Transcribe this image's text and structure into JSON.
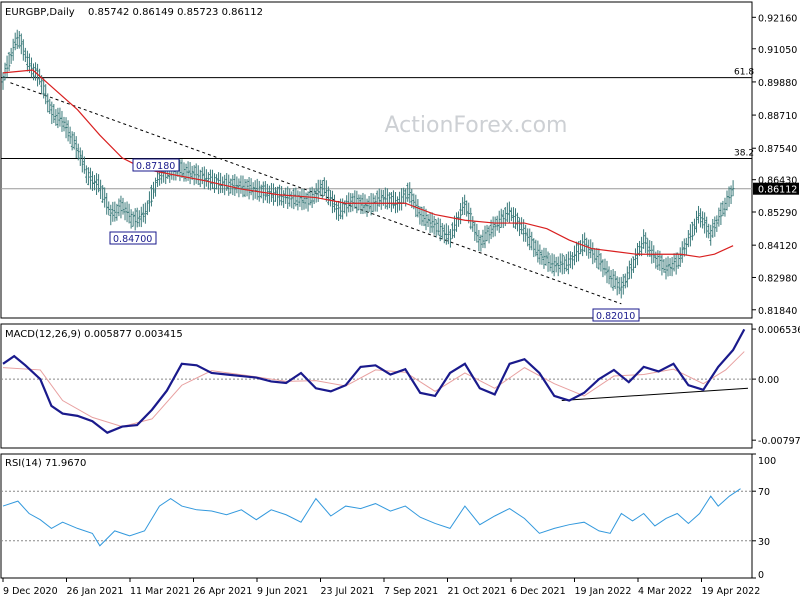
{
  "header": {
    "symbol_line": "EURGBP,Daily",
    "ohlc": "0.85742 0.86149 0.85723 0.86112"
  },
  "watermark": "ActionForex.com",
  "colors": {
    "price": "#3a7a7a",
    "ema": "#d92020",
    "trendline": "#000000",
    "macd": "#1a1a8c",
    "signal": "#e8a0a0",
    "rsi": "#3399dd",
    "grid": "#888888",
    "level": "#000000"
  },
  "chart_data": [
    {
      "type": "line",
      "panel": "price",
      "title": "EURGBP,Daily",
      "y_ticks": [
        "0.92160",
        "0.91050",
        "0.89880",
        "0.88710",
        "0.87540",
        "0.86430",
        "0.85290",
        "0.84120",
        "0.82980",
        "0.81840"
      ],
      "ylim": [
        0.8155,
        0.927
      ],
      "x_ticks": [
        "9 Dec 2020",
        "26 Jan 2021",
        "11 Mar 2021",
        "26 Apr 2021",
        "9 Jun 2021",
        "23 Jul 2021",
        "7 Sep 2021",
        "21 Oct 2021",
        "6 Dec 2021",
        "19 Jan 2022",
        "4 Mar 2022",
        "19 Apr 2022"
      ],
      "current_price": "0.86112",
      "levels": [
        {
          "label": "61.8",
          "value": 0.9003
        },
        {
          "label": "38.2",
          "value": 0.8718
        },
        {
          "label": "",
          "value": 0.8611
        }
      ],
      "annotations": [
        {
          "text": "0.87180",
          "t": 0.21,
          "value": 0.8718
        },
        {
          "text": "0.84700",
          "t": 0.175,
          "value": 0.847
        },
        {
          "text": "0.82010",
          "t": 0.83,
          "value": 0.8201
        }
      ],
      "trendline": {
        "start": [
          0.01,
          0.8985
        ],
        "end": [
          0.83,
          0.8205
        ]
      },
      "series": [
        {
          "name": "Price",
          "points": [
            [
              0,
              0.9
            ],
            [
              0.02,
              0.915
            ],
            [
              0.035,
              0.905
            ],
            [
              0.05,
              0.9
            ],
            [
              0.065,
              0.888
            ],
            [
              0.08,
              0.885
            ],
            [
              0.1,
              0.875
            ],
            [
              0.115,
              0.865
            ],
            [
              0.13,
              0.862
            ],
            [
              0.145,
              0.852
            ],
            [
              0.16,
              0.855
            ],
            [
              0.175,
              0.85
            ],
            [
              0.19,
              0.852
            ],
            [
              0.21,
              0.866
            ],
            [
              0.235,
              0.868
            ],
            [
              0.26,
              0.866
            ],
            [
              0.29,
              0.863
            ],
            [
              0.32,
              0.862
            ],
            [
              0.35,
              0.86
            ],
            [
              0.38,
              0.858
            ],
            [
              0.41,
              0.857
            ],
            [
              0.43,
              0.862
            ],
            [
              0.45,
              0.853
            ],
            [
              0.47,
              0.857
            ],
            [
              0.49,
              0.855
            ],
            [
              0.51,
              0.858
            ],
            [
              0.53,
              0.856
            ],
            [
              0.545,
              0.86
            ],
            [
              0.56,
              0.852
            ],
            [
              0.58,
              0.848
            ],
            [
              0.6,
              0.844
            ],
            [
              0.62,
              0.856
            ],
            [
              0.64,
              0.842
            ],
            [
              0.66,
              0.848
            ],
            [
              0.68,
              0.853
            ],
            [
              0.7,
              0.846
            ],
            [
              0.72,
              0.838
            ],
            [
              0.74,
              0.834
            ],
            [
              0.76,
              0.835
            ],
            [
              0.78,
              0.842
            ],
            [
              0.8,
              0.836
            ],
            [
              0.815,
              0.83
            ],
            [
              0.83,
              0.826
            ],
            [
              0.845,
              0.834
            ],
            [
              0.86,
              0.843
            ],
            [
              0.875,
              0.837
            ],
            [
              0.89,
              0.833
            ],
            [
              0.905,
              0.835
            ],
            [
              0.92,
              0.843
            ],
            [
              0.935,
              0.852
            ],
            [
              0.95,
              0.845
            ],
            [
              0.965,
              0.853
            ],
            [
              0.98,
              0.861
            ]
          ]
        },
        {
          "name": "EMA",
          "points": [
            [
              0,
              0.902
            ],
            [
              0.04,
              0.903
            ],
            [
              0.07,
              0.896
            ],
            [
              0.1,
              0.889
            ],
            [
              0.13,
              0.88
            ],
            [
              0.16,
              0.872
            ],
            [
              0.19,
              0.868
            ],
            [
              0.23,
              0.866
            ],
            [
              0.27,
              0.864
            ],
            [
              0.32,
              0.861
            ],
            [
              0.37,
              0.859
            ],
            [
              0.42,
              0.858
            ],
            [
              0.46,
              0.856
            ],
            [
              0.5,
              0.856
            ],
            [
              0.54,
              0.856
            ],
            [
              0.58,
              0.852
            ],
            [
              0.62,
              0.85
            ],
            [
              0.66,
              0.849
            ],
            [
              0.7,
              0.849
            ],
            [
              0.73,
              0.847
            ],
            [
              0.76,
              0.843
            ],
            [
              0.79,
              0.84
            ],
            [
              0.82,
              0.839
            ],
            [
              0.85,
              0.838
            ],
            [
              0.88,
              0.838
            ],
            [
              0.91,
              0.838
            ],
            [
              0.935,
              0.837
            ],
            [
              0.955,
              0.838
            ],
            [
              0.98,
              0.841
            ]
          ]
        }
      ]
    },
    {
      "type": "line",
      "panel": "macd",
      "title": "MACD(12,26,9) 0.005877 0.003415",
      "y_ticks": [
        "0.006536",
        "0.00",
        "-0.007977"
      ],
      "ylim": [
        -0.009,
        0.0072
      ],
      "trendline": {
        "start": [
          0.75,
          -0.0028
        ],
        "end": [
          1.0,
          -0.0012
        ]
      },
      "series": [
        {
          "name": "MACD",
          "points": [
            [
              0,
              0.002
            ],
            [
              0.015,
              0.003
            ],
            [
              0.03,
              0.0018
            ],
            [
              0.05,
              0.0
            ],
            [
              0.065,
              -0.0035
            ],
            [
              0.08,
              -0.0045
            ],
            [
              0.1,
              -0.0048
            ],
            [
              0.12,
              -0.0055
            ],
            [
              0.14,
              -0.007
            ],
            [
              0.16,
              -0.0062
            ],
            [
              0.18,
              -0.006
            ],
            [
              0.2,
              -0.004
            ],
            [
              0.22,
              -0.0015
            ],
            [
              0.24,
              0.002
            ],
            [
              0.26,
              0.0018
            ],
            [
              0.28,
              0.0008
            ],
            [
              0.3,
              0.0006
            ],
            [
              0.32,
              0.0004
            ],
            [
              0.34,
              0.0002
            ],
            [
              0.36,
              -0.0003
            ],
            [
              0.38,
              -0.0005
            ],
            [
              0.4,
              0.0008
            ],
            [
              0.42,
              -0.0012
            ],
            [
              0.44,
              -0.0016
            ],
            [
              0.46,
              -0.0008
            ],
            [
              0.48,
              0.0016
            ],
            [
              0.5,
              0.0018
            ],
            [
              0.52,
              0.0006
            ],
            [
              0.54,
              0.0013
            ],
            [
              0.56,
              -0.0018
            ],
            [
              0.58,
              -0.0022
            ],
            [
              0.6,
              0.0008
            ],
            [
              0.62,
              0.002
            ],
            [
              0.64,
              -0.0012
            ],
            [
              0.66,
              -0.002
            ],
            [
              0.68,
              0.002
            ],
            [
              0.7,
              0.0026
            ],
            [
              0.72,
              0.0008
            ],
            [
              0.74,
              -0.0022
            ],
            [
              0.76,
              -0.0028
            ],
            [
              0.78,
              -0.0018
            ],
            [
              0.8,
              0.0
            ],
            [
              0.82,
              0.0012
            ],
            [
              0.84,
              -0.0004
            ],
            [
              0.86,
              0.0016
            ],
            [
              0.88,
              0.001
            ],
            [
              0.9,
              0.002
            ],
            [
              0.92,
              -0.0008
            ],
            [
              0.94,
              -0.0014
            ],
            [
              0.96,
              0.0016
            ],
            [
              0.98,
              0.0038
            ],
            [
              0.995,
              0.0065
            ]
          ]
        },
        {
          "name": "Signal",
          "points": [
            [
              0,
              0.0015
            ],
            [
              0.05,
              0.0012
            ],
            [
              0.08,
              -0.0028
            ],
            [
              0.12,
              -0.005
            ],
            [
              0.16,
              -0.0062
            ],
            [
              0.2,
              -0.0052
            ],
            [
              0.24,
              -0.0008
            ],
            [
              0.28,
              0.0011
            ],
            [
              0.34,
              0.0003
            ],
            [
              0.38,
              -0.0003
            ],
            [
              0.42,
              -0.0002
            ],
            [
              0.46,
              -0.0009
            ],
            [
              0.5,
              0.0012
            ],
            [
              0.54,
              0.0009
            ],
            [
              0.58,
              -0.0016
            ],
            [
              0.62,
              0.0008
            ],
            [
              0.66,
              -0.0012
            ],
            [
              0.7,
              0.0015
            ],
            [
              0.74,
              -0.0006
            ],
            [
              0.78,
              -0.0022
            ],
            [
              0.82,
              0.0004
            ],
            [
              0.86,
              0.0006
            ],
            [
              0.9,
              0.0013
            ],
            [
              0.94,
              -0.0006
            ],
            [
              0.97,
              0.0012
            ],
            [
              0.995,
              0.0036
            ]
          ]
        }
      ]
    },
    {
      "type": "line",
      "panel": "rsi",
      "title": "RSI(14) 71.9670",
      "y_ticks": [
        "100",
        "70",
        "30",
        "0"
      ],
      "ylim": [
        0,
        100
      ],
      "levels": [
        {
          "label": "70",
          "value": 70
        },
        {
          "label": "30",
          "value": 30
        }
      ],
      "series": [
        {
          "name": "RSI",
          "points": [
            [
              0,
              58
            ],
            [
              0.02,
              62
            ],
            [
              0.035,
              52
            ],
            [
              0.05,
              47
            ],
            [
              0.065,
              40
            ],
            [
              0.08,
              45
            ],
            [
              0.1,
              40
            ],
            [
              0.12,
              36
            ],
            [
              0.13,
              26
            ],
            [
              0.15,
              38
            ],
            [
              0.17,
              34
            ],
            [
              0.19,
              38
            ],
            [
              0.21,
              58
            ],
            [
              0.225,
              64
            ],
            [
              0.24,
              58
            ],
            [
              0.26,
              55
            ],
            [
              0.28,
              54
            ],
            [
              0.3,
              51
            ],
            [
              0.32,
              55
            ],
            [
              0.34,
              47
            ],
            [
              0.36,
              55
            ],
            [
              0.38,
              51
            ],
            [
              0.4,
              45
            ],
            [
              0.42,
              64
            ],
            [
              0.44,
              50
            ],
            [
              0.46,
              58
            ],
            [
              0.48,
              56
            ],
            [
              0.5,
              60
            ],
            [
              0.52,
              54
            ],
            [
              0.54,
              58
            ],
            [
              0.56,
              49
            ],
            [
              0.58,
              44
            ],
            [
              0.6,
              40
            ],
            [
              0.62,
              58
            ],
            [
              0.64,
              43
            ],
            [
              0.66,
              50
            ],
            [
              0.68,
              56
            ],
            [
              0.7,
              48
            ],
            [
              0.72,
              36
            ],
            [
              0.74,
              40
            ],
            [
              0.76,
              43
            ],
            [
              0.78,
              45
            ],
            [
              0.8,
              38
            ],
            [
              0.815,
              36
            ],
            [
              0.83,
              52
            ],
            [
              0.845,
              46
            ],
            [
              0.86,
              52
            ],
            [
              0.875,
              42
            ],
            [
              0.89,
              48
            ],
            [
              0.905,
              52
            ],
            [
              0.92,
              44
            ],
            [
              0.935,
              52
            ],
            [
              0.95,
              66
            ],
            [
              0.96,
              58
            ],
            [
              0.975,
              66
            ],
            [
              0.99,
              72
            ]
          ]
        }
      ]
    }
  ]
}
